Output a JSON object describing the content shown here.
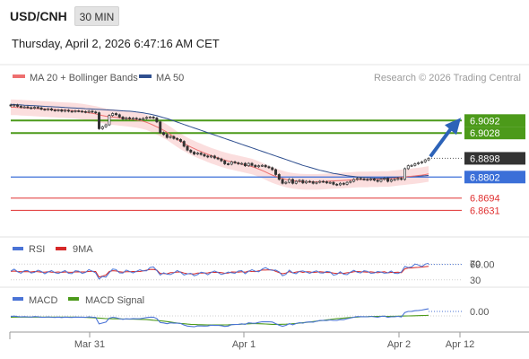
{
  "header": {
    "symbol": "USD/CNH",
    "timeframe": "30 MIN",
    "datetime": "Thursday, April 2, 2026 6:47:16 AM CET"
  },
  "legend": {
    "main": [
      {
        "label": "MA 20 + Bollinger Bands",
        "color": "#ee6f6f"
      },
      {
        "label": "MA 50",
        "color": "#2f4f8f"
      }
    ],
    "credit": "Research © 2026 Trading Central",
    "rsi": [
      {
        "label": "RSI",
        "color": "#4a73d6"
      },
      {
        "label": "9MA",
        "color": "#d62828"
      }
    ],
    "macd": [
      {
        "label": "MACD",
        "color": "#4a73d6"
      },
      {
        "label": "MACD Signal",
        "color": "#4c9a1a"
      }
    ]
  },
  "chart_data": {
    "type": "line",
    "title": "USD/CNH 30 MIN",
    "ylim": [
      6.855,
      6.925
    ],
    "x_ticks": [
      "Mar 31",
      "Apr 1",
      "Apr 2",
      "Apr 12"
    ],
    "current_price": 6.8898,
    "levels": [
      {
        "value": 6.9092,
        "type": "resistance",
        "color": "#4c9a1a"
      },
      {
        "value": 6.9028,
        "type": "resistance",
        "color": "#4c9a1a"
      },
      {
        "value": 6.8898,
        "type": "current",
        "color": "#333333"
      },
      {
        "value": 6.8802,
        "type": "pivot",
        "color": "#3b6fd8"
      },
      {
        "value": 6.8694,
        "type": "support",
        "color": "#e03030"
      },
      {
        "value": 6.8631,
        "type": "support",
        "color": "#e03030"
      }
    ],
    "close": [
      6.9168,
      6.9172,
      6.9165,
      6.916,
      6.9162,
      6.9158,
      6.9155,
      6.916,
      6.9157,
      6.915,
      6.9148,
      6.9152,
      6.9146,
      6.9143,
      6.9147,
      6.914,
      6.9145,
      6.914,
      6.9138,
      6.9142,
      6.914,
      6.9138,
      6.9135,
      6.914,
      6.9136,
      6.9132,
      6.905,
      6.906,
      6.907,
      6.9118,
      6.9128,
      6.9122,
      6.911,
      6.91,
      6.9106,
      6.9102,
      6.9104,
      6.91,
      6.9098,
      6.9103,
      6.9108,
      6.911,
      6.9105,
      6.9085,
      6.903,
      6.902,
      6.9005,
      6.901,
      6.9,
      6.8995,
      6.8985,
      6.896,
      6.894,
      6.893,
      6.892,
      6.8925,
      6.8918,
      6.891,
      6.8905,
      6.891,
      6.89,
      6.8895,
      6.8885,
      6.887,
      6.8868,
      6.888,
      6.8875,
      6.887,
      6.8872,
      6.886,
      6.8872,
      6.8862,
      6.8855,
      6.886,
      6.8862,
      6.8855,
      6.885,
      6.884,
      6.8815,
      6.879,
      6.877,
      6.8775,
      6.879,
      6.877,
      6.878,
      6.8785,
      6.8772,
      6.878,
      6.8778,
      6.877,
      6.8775,
      6.878,
      6.8778,
      6.8772,
      6.8775,
      6.8765,
      6.8762,
      6.877,
      6.8765,
      6.8775,
      6.878,
      6.879,
      6.8795,
      6.8792,
      6.879,
      6.8788,
      6.8792,
      6.8786,
      6.878,
      6.879,
      6.8795,
      6.878,
      6.8788,
      6.879,
      6.8795,
      6.879,
      6.8845,
      6.886,
      6.8862,
      6.887,
      6.8875,
      6.888,
      6.889,
      6.8898
    ],
    "ma20": [
      6.916,
      6.916,
      6.9159,
      6.9158,
      6.9157,
      6.9156,
      6.9155,
      6.9154,
      6.9153,
      6.9152,
      6.9151,
      6.915,
      6.9149,
      6.9148,
      6.9147,
      6.9146,
      6.9145,
      6.9144,
      6.9143,
      6.9142,
      6.914,
      6.9138,
      6.9135,
      6.9132,
      6.9129,
      6.9126,
      6.9122,
      6.9118,
      6.9114,
      6.9112,
      6.911,
      6.9108,
      6.9106,
      6.9104,
      6.9102,
      6.91,
      6.9098,
      6.9095,
      6.9092,
      6.9088,
      6.9083,
      6.9076,
      6.9068,
      6.906,
      6.9052,
      6.9042,
      6.9032,
      6.902,
      6.9008,
      6.8996,
      6.8985,
      6.8975,
      6.8965,
      6.8956,
      6.8948,
      6.894,
      6.8933,
      6.8926,
      6.8919,
      6.8912,
      6.8906,
      6.89,
      6.8894,
      6.8889,
      6.8884,
      6.888,
      6.8876,
      6.8872,
      6.8868,
      6.8864,
      6.886,
      6.8856,
      6.885,
      6.8843,
      6.8836,
      6.8828,
      6.882,
      6.8812,
      6.8806,
      6.88,
      6.8795,
      6.879,
      6.8786,
      6.8783,
      6.8781,
      6.8779,
      6.8778,
      6.8777,
      6.8777,
      6.8777,
      6.8777,
      6.8778,
      6.8779,
      6.878,
      6.8781,
      6.8782,
      6.8783,
      6.8784,
      6.8785,
      6.8786,
      6.8787,
      6.8788,
      6.8789,
      6.879,
      6.879,
      6.879,
      6.8791,
      6.8791,
      6.8791,
      6.8792,
      6.8792,
      6.8792,
      6.8794,
      6.8796,
      6.8798,
      6.88,
      6.8802,
      6.8804,
      6.8806,
      6.8808,
      6.881,
      6.8812,
      6.8815,
      6.8818
    ],
    "ma50": [
      6.9175,
      6.9174,
      6.9173,
      6.9172,
      6.9171,
      6.917,
      6.9169,
      6.9168,
      6.9167,
      6.9166,
      6.9165,
      6.9164,
      6.9163,
      6.9162,
      6.9161,
      6.916,
      6.9159,
      6.9158,
      6.9157,
      6.9156,
      6.9155,
      6.9154,
      6.9153,
      6.9152,
      6.9151,
      6.915,
      6.9149,
      6.9148,
      6.9147,
      6.9146,
      6.9145,
      6.9144,
      6.9143,
      6.9142,
      6.9141,
      6.914,
      6.9138,
      6.9136,
      6.9134,
      6.9131,
      6.9128,
      6.9125,
      6.9121,
      6.9117,
      6.9112,
      6.9107,
      6.9102,
      6.9096,
      6.909,
      6.9084,
      6.9078,
      6.9072,
      6.9066,
      6.906,
      6.9054,
      6.9048,
      6.9042,
      6.9036,
      6.903,
      6.9024,
      6.9018,
      6.9012,
      6.9006,
      6.9,
      6.8994,
      6.8988,
      6.8982,
      6.8976,
      6.897,
      6.8964,
      6.8958,
      6.8952,
      6.8946,
      6.894,
      6.8934,
      6.8928,
      6.8922,
      6.8916,
      6.891,
      6.8904,
      6.8898,
      6.8892,
      6.8886,
      6.888,
      6.8874,
      6.8868,
      6.8862,
      6.8857,
      6.8852,
      6.8847,
      6.8842,
      6.8837,
      6.8833,
      6.8829,
      6.8825,
      6.8821,
      6.8818,
      6.8815,
      6.8812,
      6.8809,
      6.8807,
      6.8805,
      6.8803,
      6.8801,
      6.88,
      6.8799,
      6.8798,
      6.8797,
      6.8797,
      6.8797,
      6.8797,
      6.8798,
      6.8799,
      6.88,
      6.8801,
      6.8802,
      6.8803,
      6.8804,
      6.8805,
      6.8806,
      6.8807,
      6.8808,
      6.8809,
      6.881
    ],
    "bollinger_band_width": 0.004,
    "rsi": {
      "value": 69.0,
      "overbought": 70,
      "oversold": 30
    },
    "macd": {
      "value": 0.0
    }
  }
}
